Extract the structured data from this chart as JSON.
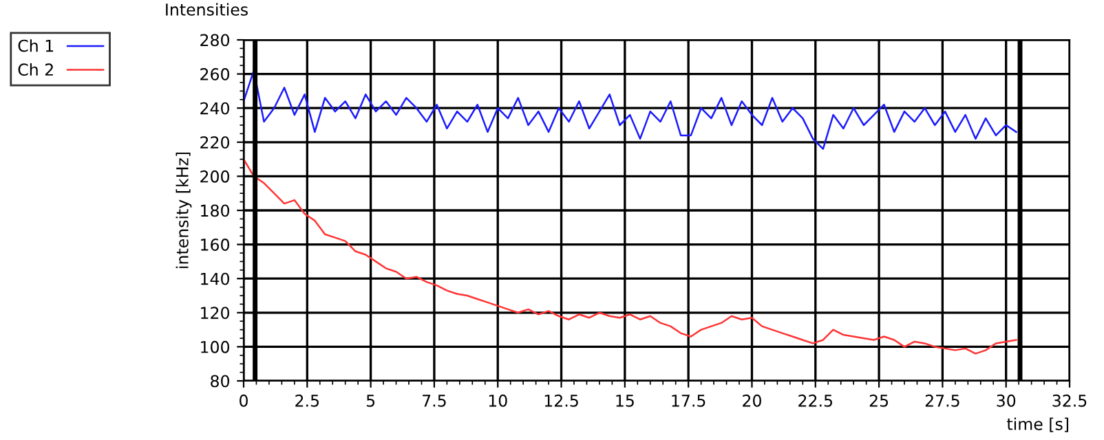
{
  "chart_data": {
    "type": "line",
    "title": "Intensities",
    "xlabel": "time [s]",
    "ylabel": "intensity [kHz]",
    "x": [
      0,
      0.4,
      0.8,
      1.2,
      1.6,
      2.0,
      2.4,
      2.8,
      3.2,
      3.6,
      4.0,
      4.4,
      4.8,
      5.2,
      5.6,
      6.0,
      6.4,
      6.8,
      7.2,
      7.6,
      8.0,
      8.4,
      8.8,
      9.2,
      9.6,
      10.0,
      10.4,
      10.8,
      11.2,
      11.6,
      12.0,
      12.4,
      12.8,
      13.2,
      13.6,
      14.0,
      14.4,
      14.8,
      15.2,
      15.6,
      16.0,
      16.4,
      16.8,
      17.2,
      17.6,
      18.0,
      18.4,
      18.8,
      19.2,
      19.6,
      20.0,
      20.4,
      20.8,
      21.2,
      21.6,
      22.0,
      22.4,
      22.8,
      23.2,
      23.6,
      24.0,
      24.4,
      24.8,
      25.2,
      25.6,
      26.0,
      26.4,
      26.8,
      27.2,
      27.6,
      28.0,
      28.4,
      28.8,
      29.2,
      29.6,
      30.0,
      30.4
    ],
    "series": [
      {
        "name": "Ch 1",
        "color": "#1a1aff",
        "values": [
          244,
          262,
          232,
          240,
          252,
          236,
          248,
          226,
          246,
          238,
          244,
          234,
          248,
          238,
          244,
          236,
          246,
          240,
          232,
          242,
          228,
          238,
          232,
          242,
          226,
          240,
          234,
          246,
          230,
          238,
          226,
          240,
          232,
          244,
          228,
          238,
          248,
          230,
          236,
          222,
          238,
          232,
          244,
          224,
          224,
          240,
          234,
          246,
          230,
          244,
          236,
          230,
          246,
          232,
          240,
          234,
          222,
          216,
          236,
          228,
          240,
          230,
          236,
          242,
          226,
          238,
          232,
          240,
          230,
          238,
          226,
          236,
          222,
          234,
          224,
          230,
          226
        ]
      },
      {
        "name": "Ch 2",
        "color": "#ff3333",
        "values": [
          210,
          200,
          196,
          190,
          184,
          186,
          178,
          174,
          166,
          164,
          162,
          156,
          154,
          150,
          146,
          144,
          140,
          141,
          138,
          136,
          133,
          131,
          130,
          128,
          126,
          124,
          122,
          120,
          122,
          119,
          121,
          118,
          116,
          119,
          117,
          120,
          118,
          117,
          119,
          116,
          118,
          114,
          112,
          108,
          106,
          110,
          112,
          114,
          118,
          116,
          117,
          112,
          110,
          108,
          106,
          104,
          102,
          104,
          110,
          107,
          106,
          105,
          104,
          106,
          104,
          100,
          103,
          102,
          100,
          99,
          98,
          99,
          96,
          98,
          102,
          103,
          104
        ]
      }
    ],
    "xlim": [
      0,
      32.5
    ],
    "xticks": [
      0,
      2.5,
      5,
      7.5,
      10,
      12.5,
      15,
      17.5,
      20,
      22.5,
      25,
      27.5,
      30,
      32.5
    ],
    "ylim": [
      80,
      280
    ],
    "yticks": [
      80,
      100,
      120,
      140,
      160,
      180,
      200,
      220,
      240,
      260,
      280
    ],
    "ref_lines": [
      {
        "axis": "x",
        "value": 0.45,
        "label": null,
        "color": "#000000"
      },
      {
        "axis": "x",
        "value": 30.55,
        "label": null,
        "color": "#000000"
      }
    ],
    "grid": true,
    "legend": "top left",
    "marker": "none",
    "line_style": "solid"
  }
}
